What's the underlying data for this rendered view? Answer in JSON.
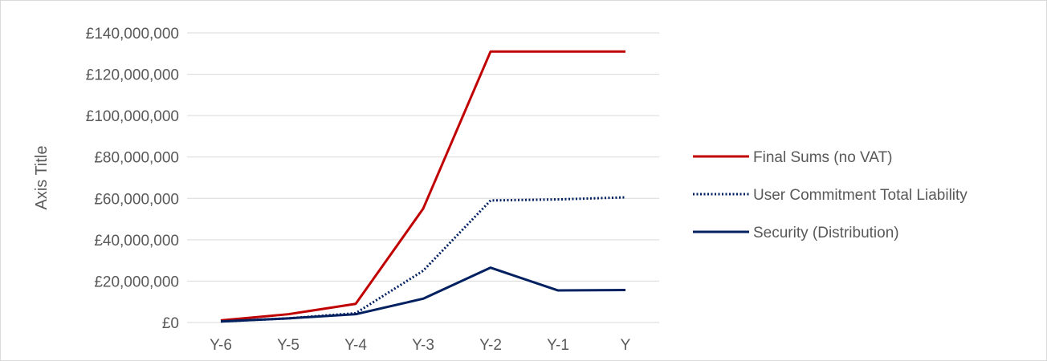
{
  "chart_data": {
    "type": "line",
    "title": "",
    "xlabel": "",
    "ylabel": "Axis Title",
    "categories": [
      "Y-6",
      "Y-5",
      "Y-4",
      "Y-3",
      "Y-2",
      "Y-1",
      "Y"
    ],
    "ylim": [
      0,
      140000000
    ],
    "yticks": [
      0,
      20000000,
      40000000,
      60000000,
      80000000,
      100000000,
      120000000,
      140000000
    ],
    "ytick_labels": [
      "£0",
      "£20,000,000",
      "£40,000,000",
      "£60,000,000",
      "£80,000,000",
      "£100,000,000",
      "£120,000,000",
      "£140,000,000"
    ],
    "grid": true,
    "legend": "right",
    "series": [
      {
        "name": "Final Sums (no VAT)",
        "values": [
          1000000,
          4000000,
          9000000,
          55000000,
          131000000,
          131000000,
          131000000
        ],
        "color": "#c00000",
        "style": "solid"
      },
      {
        "name": "User Commitment Total Liability",
        "values": [
          500000,
          2000000,
          4500000,
          25000000,
          59000000,
          59500000,
          60500000
        ],
        "color": "#002060",
        "style": "dotted"
      },
      {
        "name": "Security (Distribution)",
        "values": [
          500000,
          2000000,
          4000000,
          11500000,
          26500000,
          15500000,
          15700000
        ],
        "color": "#002060",
        "style": "solid"
      }
    ]
  }
}
